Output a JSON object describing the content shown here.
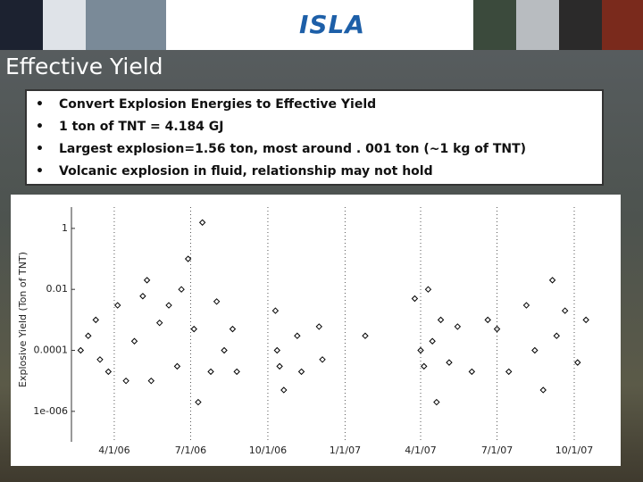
{
  "header": {
    "logo": "ISLA",
    "title": "Effective Yield"
  },
  "bullets": [
    "Convert Explosion Energies to Effective Yield",
    "1 ton of TNT = 4.184 GJ",
    "Largest explosion=1.56 ton, most around . 001 ton (~1 kg of TNT)",
    "Volcanic explosion in fluid, relationship may not hold"
  ],
  "chart_data": {
    "type": "scatter",
    "y_label": "Explosive Yield (Ton of TNT)",
    "log_y": true,
    "color": "#000000",
    "ylim": [
      1e-07,
      5
    ],
    "yticks": [
      1,
      0.01,
      0.0001,
      {
        "value": 1e-06,
        "label": "1e-006"
      }
    ],
    "xlim": [
      "2006-02-09",
      "2007-11-20"
    ],
    "xticks": [
      {
        "value": "2006-04-01",
        "label": "4/1/06"
      },
      {
        "value": "2006-07-01",
        "label": "7/1/06"
      },
      {
        "value": "2006-10-01",
        "label": "10/1/06"
      },
      {
        "value": "2007-01-01",
        "label": "1/1/07"
      },
      {
        "value": "2007-04-01",
        "label": "4/1/07"
      },
      {
        "value": "2007-07-01",
        "label": "7/1/07"
      },
      {
        "value": "2007-10-01",
        "label": "10/1/07"
      }
    ],
    "x": [
      "2006-02-20",
      "2006-03-01",
      "2006-03-10",
      "2006-03-15",
      "2006-03-25",
      "2006-04-05",
      "2006-04-15",
      "2006-04-25",
      "2006-05-05",
      "2006-05-10",
      "2006-05-15",
      "2006-05-25",
      "2006-06-05",
      "2006-06-15",
      "2006-06-20",
      "2006-06-28",
      "2006-07-05",
      "2006-07-10",
      "2006-07-15",
      "2006-07-25",
      "2006-08-01",
      "2006-08-10",
      "2006-08-20",
      "2006-08-25",
      "2006-10-10",
      "2006-10-12",
      "2006-10-15",
      "2006-10-20",
      "2006-11-05",
      "2006-11-10",
      "2006-12-01",
      "2006-12-05",
      "2007-01-25",
      "2007-03-25",
      "2007-04-01",
      "2007-04-05",
      "2007-04-10",
      "2007-04-15",
      "2007-04-20",
      "2007-04-25",
      "2007-05-05",
      "2007-05-15",
      "2007-06-01",
      "2007-06-20",
      "2007-07-01",
      "2007-07-15",
      "2007-08-05",
      "2007-08-15",
      "2007-08-25",
      "2007-09-05",
      "2007-09-10",
      "2007-09-20",
      "2007-10-05",
      "2007-10-15"
    ],
    "values": [
      0.0001,
      0.0003,
      0.001,
      5e-05,
      2e-05,
      0.003,
      1e-05,
      0.0002,
      0.006,
      0.02,
      1e-05,
      0.0008,
      0.003,
      3e-05,
      0.01,
      0.1,
      0.0005,
      2e-06,
      1.56,
      2e-05,
      0.004,
      0.0001,
      0.0005,
      2e-05,
      0.002,
      0.0001,
      3e-05,
      5e-06,
      0.0003,
      2e-05,
      0.0006,
      5e-05,
      0.0003,
      0.005,
      0.0001,
      3e-05,
      0.01,
      0.0002,
      2e-06,
      0.001,
      4e-05,
      0.0006,
      2e-05,
      0.001,
      0.0005,
      2e-05,
      0.003,
      0.0001,
      5e-06,
      0.02,
      0.0003,
      0.002,
      4e-05,
      0.001
    ]
  }
}
